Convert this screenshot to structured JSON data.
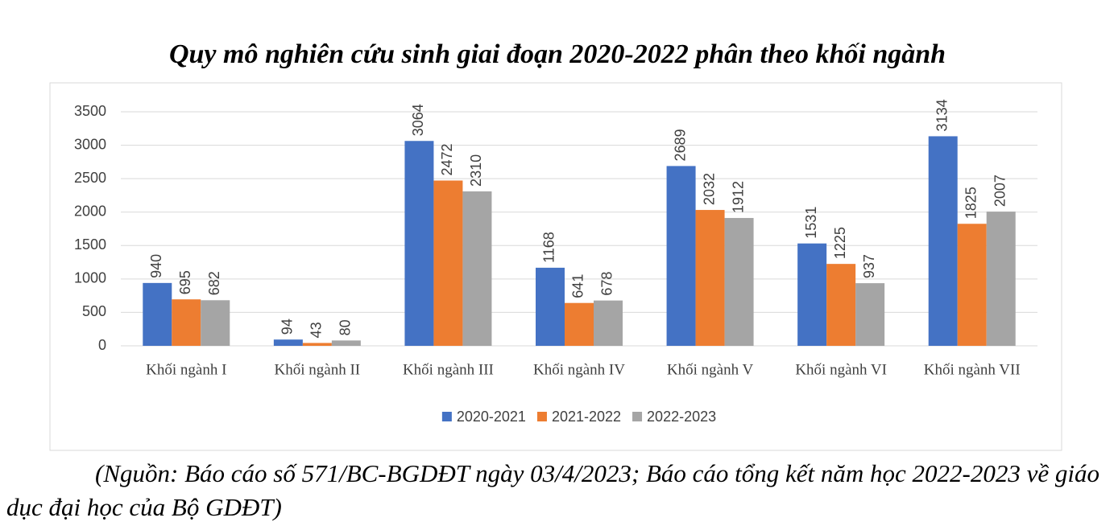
{
  "chart_data": {
    "type": "bar",
    "title": "Quy mô nghiên cứu sinh giai đoạn 2020-2022 phân theo khối ngành",
    "categories": [
      "Khối ngành I",
      "Khối ngành II",
      "Khối ngành III",
      "Khối ngành IV",
      "Khối ngành V",
      "Khối ngành VI",
      "Khối ngành VII"
    ],
    "series": [
      {
        "name": "2020-2021",
        "color": "#4472c4",
        "values": [
          940,
          94,
          3064,
          1168,
          2689,
          1531,
          3134
        ]
      },
      {
        "name": "2021-2022",
        "color": "#ed7d31",
        "values": [
          695,
          43,
          2472,
          641,
          2032,
          1225,
          1825
        ]
      },
      {
        "name": "2022-2023",
        "color": "#a5a5a5",
        "values": [
          682,
          80,
          2310,
          678,
          1912,
          937,
          2007
        ]
      }
    ],
    "ylim": [
      0,
      3500
    ],
    "yticks": [
      0,
      500,
      1000,
      1500,
      2000,
      2500,
      3000,
      3500
    ],
    "grid": true,
    "legend": "bottom",
    "source": "(Nguồn: Báo cáo số 571/BC-BGDĐT ngày 03/4/2023; Báo cáo tổng kết năm học 2022-2023 về giáo dục đại học của Bộ GDĐT)"
  }
}
